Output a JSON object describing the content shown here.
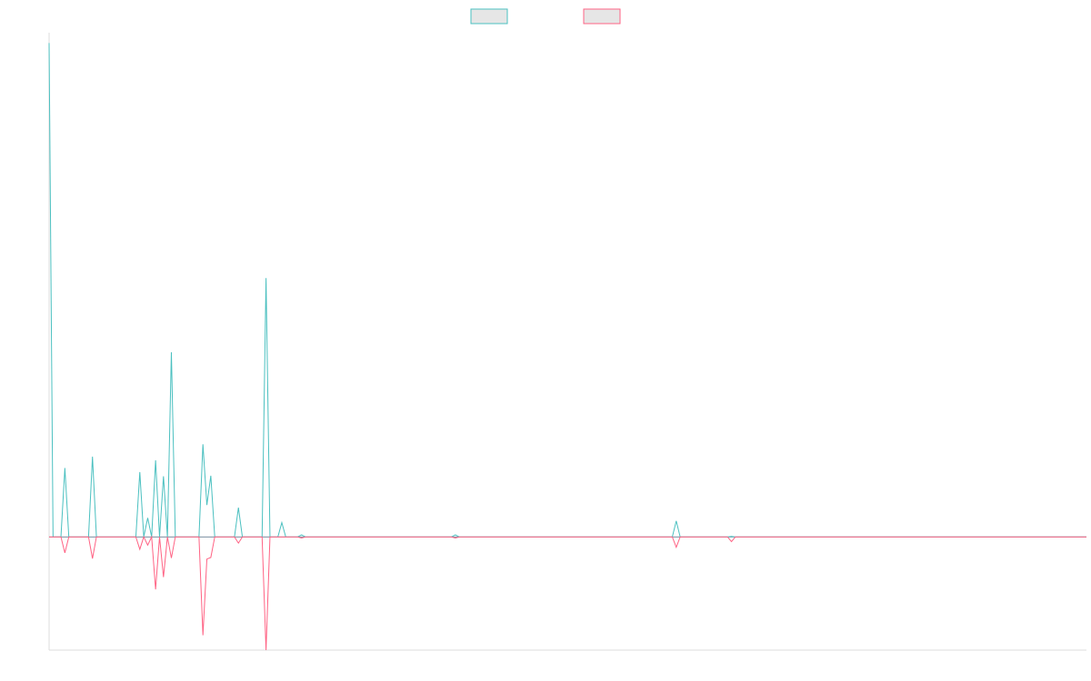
{
  "chart_data": {
    "type": "line",
    "title": "",
    "xlabel": "",
    "ylabel": "",
    "grid": false,
    "legend_position": "top-center",
    "x_count": 264,
    "ylim": [
      -22,
      98
    ],
    "series": [
      {
        "color": "#4bc0c0",
        "values": [
          96,
          0,
          0,
          0,
          13.4,
          0,
          0,
          0,
          0,
          0,
          0,
          15.6,
          0,
          0,
          0,
          0,
          0,
          0,
          0,
          0,
          0,
          0,
          0,
          12.6,
          0,
          3.7,
          0,
          14.9,
          0,
          11.8,
          0,
          35.9,
          0,
          0,
          0,
          0,
          0,
          0,
          0,
          18.0,
          6.2,
          11.9,
          0,
          0,
          0,
          0,
          0,
          0,
          5.7,
          0,
          0,
          0,
          0,
          0,
          0,
          50.3,
          0,
          0,
          0,
          2.8,
          0,
          0,
          0,
          0,
          0,
          0,
          0,
          0,
          0,
          0,
          0,
          0,
          0,
          0,
          0,
          0,
          0,
          0,
          0,
          0,
          0,
          0,
          0,
          0,
          0,
          0,
          0,
          0,
          0,
          0,
          0,
          0,
          0,
          0,
          0,
          0,
          0,
          0,
          0,
          0,
          0,
          0,
          0,
          0,
          0,
          0,
          0,
          0,
          0,
          0,
          0,
          0,
          0,
          0,
          0,
          0,
          0,
          0,
          0,
          0,
          0,
          0,
          0,
          0,
          0,
          0,
          0,
          0,
          0,
          0,
          0,
          0,
          0,
          0,
          0,
          0,
          0,
          0,
          0,
          0,
          0,
          0,
          0,
          0,
          0,
          0,
          0,
          0,
          0,
          0,
          0,
          0,
          0,
          0,
          0,
          0,
          0,
          0,
          0,
          0,
          0,
          0,
          0,
          0,
          0,
          0,
          0,
          0,
          0,
          0,
          0,
          0,
          0,
          0,
          0,
          0,
          0,
          0,
          0,
          0,
          0,
          0,
          0,
          0,
          0,
          0,
          0,
          0,
          0,
          0,
          0,
          0,
          0,
          0,
          0,
          0,
          0,
          0,
          0,
          0,
          0,
          0,
          0,
          0,
          0,
          0,
          0,
          0,
          0,
          0,
          0,
          0,
          0,
          0,
          0,
          0,
          0,
          0,
          0,
          0,
          0,
          0,
          0,
          0,
          0,
          0,
          0,
          0,
          0,
          0,
          0,
          0,
          0,
          0,
          0,
          0,
          0,
          0,
          0,
          0,
          0,
          0,
          0,
          0,
          0,
          0,
          0,
          0,
          0,
          0,
          0,
          0,
          0,
          0,
          0,
          0,
          0,
          0,
          0,
          0,
          0,
          0,
          0,
          0
        ],
        "spikes": [
          [
            64,
            0.4
          ],
          [
            103,
            0.4
          ],
          [
            159,
            3.1
          ],
          [
            173,
            0.1
          ]
        ]
      },
      {
        "color": "#ff6384",
        "values": [
          0,
          0,
          0,
          0,
          -3.1,
          0,
          0,
          0,
          0,
          0,
          0,
          -4.2,
          0,
          0,
          0,
          0,
          0,
          0,
          0,
          0,
          0,
          0,
          0,
          -2.4,
          0,
          -1.6,
          0,
          -10.2,
          0,
          -7.8,
          0,
          -4.1,
          0,
          0,
          0,
          0,
          0,
          0,
          0,
          -19.1,
          -4.3,
          -4.0,
          0,
          0,
          0,
          0,
          0,
          0,
          -1.2,
          0,
          0,
          0,
          0,
          0,
          0,
          -22,
          0,
          0,
          0,
          0,
          0,
          0,
          0,
          0,
          0,
          0,
          0,
          0,
          0,
          0,
          0,
          0,
          0,
          0,
          0,
          0,
          0,
          0,
          0,
          0,
          0,
          0,
          0,
          0,
          0,
          0,
          0,
          0,
          0,
          0,
          0,
          0,
          0,
          0,
          0,
          0,
          0,
          0,
          0,
          0,
          0,
          0,
          0,
          0,
          0,
          0,
          0,
          0,
          0,
          0,
          0,
          0,
          0,
          0,
          0,
          0,
          0,
          0,
          0,
          0,
          0,
          0,
          0,
          0,
          0,
          0,
          0,
          0,
          0,
          0,
          0,
          0,
          0,
          0,
          0,
          0,
          0,
          0,
          0,
          0,
          0,
          0,
          0,
          0,
          0,
          0,
          0,
          0,
          0,
          0,
          0,
          0,
          0,
          0,
          0,
          0,
          0,
          0,
          0,
          0,
          0,
          0,
          0,
          0,
          0,
          0,
          0,
          0,
          0,
          0,
          0,
          0,
          0,
          0,
          0,
          0,
          0,
          0,
          0,
          0,
          0,
          0,
          0,
          0,
          0,
          0,
          0,
          0,
          0,
          0,
          0,
          0,
          0,
          0,
          0,
          0,
          0,
          0,
          0,
          0,
          0,
          0,
          0,
          0,
          0,
          0,
          0,
          0,
          0,
          0,
          0,
          0,
          0,
          0,
          0,
          0,
          0,
          0,
          0,
          0,
          0,
          0,
          0,
          0,
          0,
          0,
          0,
          0,
          0,
          0,
          0,
          0,
          0,
          0,
          0,
          0,
          0,
          0,
          0,
          0,
          0,
          0,
          0,
          0,
          0,
          0,
          0,
          0,
          0,
          0,
          0,
          0,
          0,
          0,
          0,
          0,
          0,
          0,
          0,
          0,
          0,
          0,
          0,
          0
        ],
        "spikes": [
          [
            64,
            -0.2
          ],
          [
            103,
            -0.2
          ],
          [
            159,
            -2.0
          ],
          [
            173,
            -0.9
          ]
        ]
      }
    ]
  }
}
